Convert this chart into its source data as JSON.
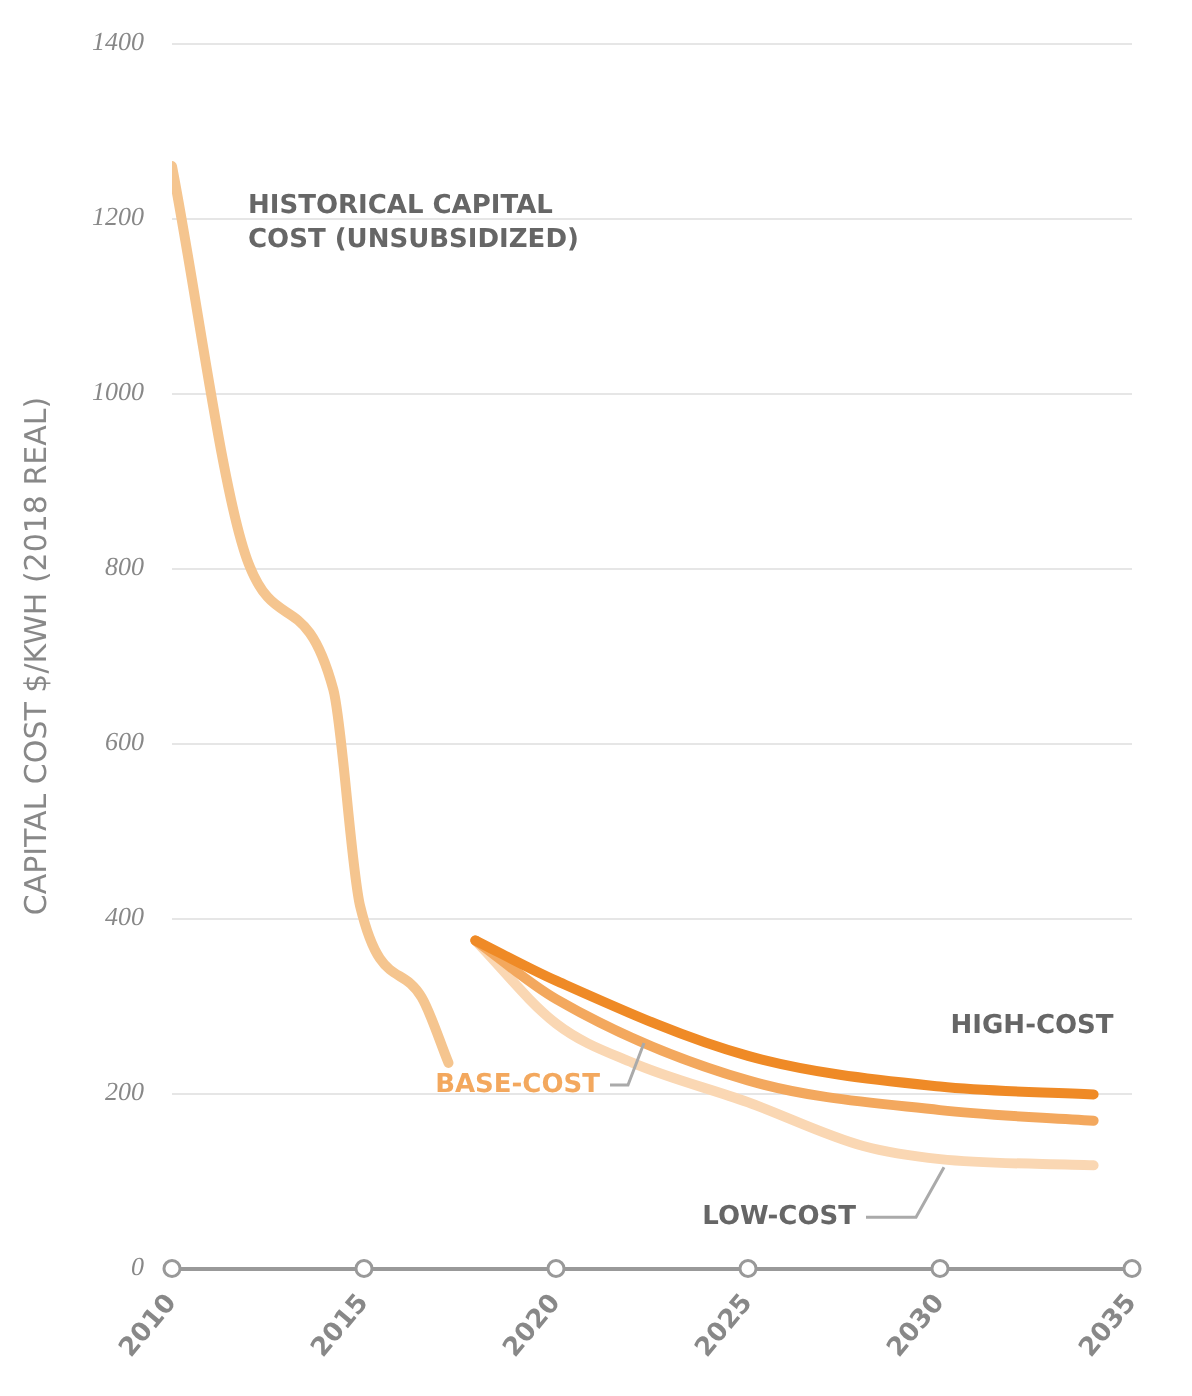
{
  "chart_data": {
    "type": "line",
    "ylabel": "CAPITAL COST $/KWH (2018 REAL)",
    "xlim": [
      2010,
      2035
    ],
    "xticks": [
      2010,
      2015,
      2020,
      2025,
      2030,
      2035
    ],
    "ylim": [
      0,
      1400
    ],
    "yticks": [
      0,
      200,
      400,
      600,
      800,
      1000,
      1200,
      1400
    ],
    "grid": "y",
    "legend": false,
    "marker": "none",
    "line_style": "solid",
    "series": [
      {
        "name": "HISTORICAL CAPITAL COST (UNSUBSIDIZED)",
        "color": "#f5c58f",
        "x": [
          2010,
          2012,
          2014.2,
          2014.9,
          2016.5,
          2017.2
        ],
        "values": [
          1260,
          805,
          662,
          414,
          310,
          235
        ]
      },
      {
        "name": "HIGH-COST",
        "color": "#ef8a26",
        "x": [
          2017.9,
          2020,
          2025,
          2030,
          2034
        ],
        "values": [
          375,
          329,
          243,
          208,
          199
        ]
      },
      {
        "name": "BASE-COST",
        "color": "#f3a85e",
        "x": [
          2017.9,
          2020,
          2025,
          2030,
          2034
        ],
        "values": [
          375,
          308,
          215,
          181,
          169
        ]
      },
      {
        "name": "LOW-COST",
        "color": "#fad7b3",
        "x": [
          2017.9,
          2020,
          2022,
          2025,
          2028,
          2030,
          2034
        ],
        "values": [
          375,
          280,
          235,
          190,
          140,
          125,
          118
        ]
      }
    ]
  }
}
